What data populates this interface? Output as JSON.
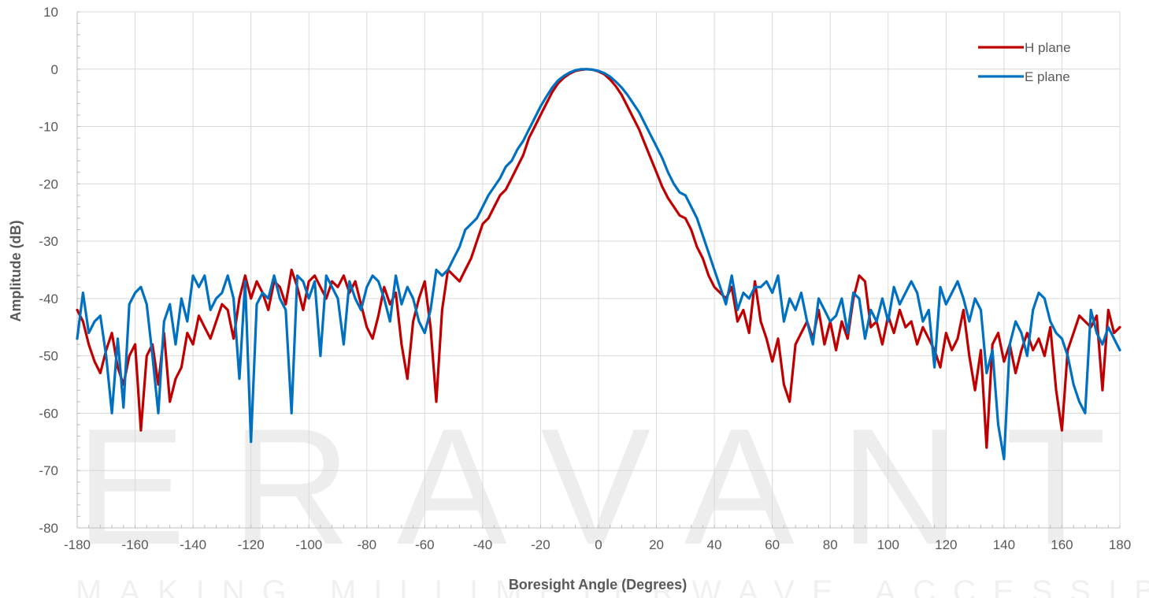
{
  "watermark": {
    "brand": "ERAVANT",
    "tagline": "MAKING MILLIMETERWAVE ACCESSIBLE"
  },
  "chart_data": {
    "type": "line",
    "xlabel": "Boresight Angle (Degrees)",
    "ylabel": "Amplitude (dB)",
    "xlim": [
      -180,
      180
    ],
    "ylim": [
      -80,
      10
    ],
    "xticks": [
      -180,
      -160,
      -140,
      -120,
      -100,
      -80,
      -60,
      -40,
      -20,
      0,
      20,
      40,
      60,
      80,
      100,
      120,
      140,
      160,
      180
    ],
    "yticks": [
      10,
      0,
      -10,
      -20,
      -30,
      -40,
      -50,
      -60,
      -70,
      -80
    ],
    "grid": true,
    "legend_position": "top-right",
    "series": [
      {
        "name": "H plane",
        "color": "#C00000",
        "x": [
          -180,
          -178,
          -176,
          -174,
          -172,
          -170,
          -168,
          -166,
          -164,
          -162,
          -160,
          -158,
          -156,
          -154,
          -152,
          -150,
          -148,
          -146,
          -144,
          -142,
          -140,
          -138,
          -136,
          -134,
          -132,
          -130,
          -128,
          -126,
          -124,
          -122,
          -120,
          -118,
          -116,
          -114,
          -112,
          -110,
          -108,
          -106,
          -104,
          -102,
          -100,
          -98,
          -96,
          -94,
          -92,
          -90,
          -88,
          -86,
          -84,
          -82,
          -80,
          -78,
          -76,
          -74,
          -72,
          -70,
          -68,
          -66,
          -64,
          -62,
          -60,
          -58,
          -56,
          -54,
          -52,
          -50,
          -48,
          -46,
          -44,
          -42,
          -40,
          -38,
          -36,
          -34,
          -32,
          -30,
          -28,
          -26,
          -24,
          -22,
          -20,
          -18,
          -16,
          -14,
          -12,
          -10,
          -8,
          -6,
          -4,
          -2,
          0,
          2,
          4,
          6,
          8,
          10,
          12,
          14,
          16,
          18,
          20,
          22,
          24,
          26,
          28,
          30,
          32,
          34,
          36,
          38,
          40,
          42,
          44,
          46,
          48,
          50,
          52,
          54,
          56,
          58,
          60,
          62,
          64,
          66,
          68,
          70,
          72,
          74,
          76,
          78,
          80,
          82,
          84,
          86,
          88,
          90,
          92,
          94,
          96,
          98,
          100,
          102,
          104,
          106,
          108,
          110,
          112,
          114,
          116,
          118,
          120,
          122,
          124,
          126,
          128,
          130,
          132,
          134,
          136,
          138,
          140,
          142,
          144,
          146,
          148,
          150,
          152,
          154,
          156,
          158,
          160,
          162,
          164,
          166,
          168,
          170,
          172,
          174,
          176,
          178,
          180
        ],
        "y": [
          -42,
          -44,
          -48,
          -51,
          -53,
          -49,
          -46,
          -52,
          -55,
          -50,
          -48,
          -63,
          -50,
          -48,
          -55,
          -46,
          -58,
          -54,
          -52,
          -46,
          -48,
          -43,
          -45,
          -47,
          -44,
          -41,
          -42,
          -47,
          -40,
          -36,
          -40,
          -37,
          -39,
          -42,
          -37,
          -38,
          -41,
          -35,
          -38,
          -42,
          -37,
          -36,
          -38,
          -40,
          -37,
          -38,
          -36,
          -39,
          -37,
          -41,
          -45,
          -47,
          -43,
          -38,
          -41,
          -39,
          -48,
          -54,
          -44,
          -40,
          -37,
          -45,
          -58,
          -42,
          -35,
          -36,
          -37,
          -35,
          -33,
          -30,
          -27,
          -26,
          -24,
          -22,
          -21,
          -19,
          -17,
          -15,
          -12,
          -10,
          -8,
          -6,
          -4,
          -2.5,
          -1.5,
          -0.8,
          -0.3,
          -0.1,
          0,
          -0.1,
          -0.4,
          -0.9,
          -1.8,
          -3,
          -4.5,
          -6.5,
          -8.5,
          -10.5,
          -13,
          -15.5,
          -18,
          -20.5,
          -22.5,
          -24,
          -25.5,
          -26,
          -28,
          -31,
          -33,
          -36,
          -38,
          -39,
          -40,
          -38,
          -44,
          -42,
          -46,
          -37,
          -44,
          -47,
          -51,
          -47,
          -55,
          -58,
          -48,
          -46,
          -44,
          -47,
          -42,
          -48,
          -44,
          -49,
          -44,
          -47,
          -40,
          -36,
          -37,
          -45,
          -44,
          -48,
          -43,
          -46,
          -42,
          -45,
          -44,
          -48,
          -45,
          -47,
          -49,
          -52,
          -46,
          -49,
          -47,
          -42,
          -50,
          -56,
          -49,
          -66,
          -48,
          -46,
          -51,
          -48,
          -53,
          -49,
          -46,
          -49,
          -47,
          -50,
          -45,
          -56,
          -63,
          -49,
          -46,
          -43,
          -44,
          -45,
          -43,
          -56,
          -42,
          -46,
          -45
        ]
      },
      {
        "name": "E plane",
        "color": "#0070C0",
        "x": [
          -180,
          -178,
          -176,
          -174,
          -172,
          -170,
          -168,
          -166,
          -164,
          -162,
          -160,
          -158,
          -156,
          -154,
          -152,
          -150,
          -148,
          -146,
          -144,
          -142,
          -140,
          -138,
          -136,
          -134,
          -132,
          -130,
          -128,
          -126,
          -124,
          -122,
          -120,
          -118,
          -116,
          -114,
          -112,
          -110,
          -108,
          -106,
          -104,
          -102,
          -100,
          -98,
          -96,
          -94,
          -92,
          -90,
          -88,
          -86,
          -84,
          -82,
          -80,
          -78,
          -76,
          -74,
          -72,
          -70,
          -68,
          -66,
          -64,
          -62,
          -60,
          -58,
          -56,
          -54,
          -52,
          -50,
          -48,
          -46,
          -44,
          -42,
          -40,
          -38,
          -36,
          -34,
          -32,
          -30,
          -28,
          -26,
          -24,
          -22,
          -20,
          -18,
          -16,
          -14,
          -12,
          -10,
          -8,
          -6,
          -4,
          -2,
          0,
          2,
          4,
          6,
          8,
          10,
          12,
          14,
          16,
          18,
          20,
          22,
          24,
          26,
          28,
          30,
          32,
          34,
          36,
          38,
          40,
          42,
          44,
          46,
          48,
          50,
          52,
          54,
          56,
          58,
          60,
          62,
          64,
          66,
          68,
          70,
          72,
          74,
          76,
          78,
          80,
          82,
          84,
          86,
          88,
          90,
          92,
          94,
          96,
          98,
          100,
          102,
          104,
          106,
          108,
          110,
          112,
          114,
          116,
          118,
          120,
          122,
          124,
          126,
          128,
          130,
          132,
          134,
          136,
          138,
          140,
          142,
          144,
          146,
          148,
          150,
          152,
          154,
          156,
          158,
          160,
          162,
          164,
          166,
          168,
          170,
          172,
          174,
          176,
          178,
          180
        ],
        "y": [
          -47,
          -39,
          -46,
          -44,
          -43,
          -50,
          -60,
          -47,
          -59,
          -41,
          -39,
          -38,
          -41,
          -50,
          -60,
          -44,
          -41,
          -48,
          -40,
          -44,
          -36,
          -38,
          -36,
          -42,
          -40,
          -39,
          -36,
          -40,
          -54,
          -37,
          -65,
          -41,
          -39,
          -40,
          -36,
          -40,
          -42,
          -60,
          -36,
          -37,
          -40,
          -37,
          -50,
          -36,
          -38,
          -40,
          -48,
          -37,
          -40,
          -42,
          -38,
          -36,
          -37,
          -40,
          -44,
          -36,
          -41,
          -38,
          -40,
          -44,
          -46,
          -42,
          -35,
          -36,
          -35,
          -33,
          -31,
          -28,
          -27,
          -26,
          -24,
          -22,
          -20.5,
          -19,
          -17,
          -16,
          -14,
          -12.5,
          -10.5,
          -8.5,
          -6.5,
          -4.8,
          -3.2,
          -2,
          -1.2,
          -0.6,
          -0.2,
          0,
          0,
          -0.1,
          -0.3,
          -0.7,
          -1.3,
          -2.2,
          -3.2,
          -4.5,
          -6,
          -7.5,
          -9.5,
          -11.5,
          -13.5,
          -15.5,
          -18,
          -20,
          -21.5,
          -22,
          -24,
          -26,
          -29,
          -32,
          -35,
          -38,
          -41,
          -36,
          -42,
          -39,
          -40,
          -38,
          -38,
          -37,
          -39,
          -36,
          -44,
          -40,
          -42,
          -39,
          -44,
          -48,
          -40,
          -42,
          -44,
          -43,
          -40,
          -46,
          -39,
          -40,
          -47,
          -42,
          -44,
          -40,
          -44,
          -38,
          -41,
          -39,
          -37,
          -39,
          -44,
          -42,
          -52,
          -38,
          -41,
          -39,
          -37,
          -40,
          -44,
          -40,
          -42,
          -53,
          -49,
          -62,
          -68,
          -48,
          -44,
          -46,
          -50,
          -42,
          -39,
          -40,
          -44,
          -46,
          -47,
          -50,
          -55,
          -58,
          -60,
          -42,
          -46,
          -48,
          -45,
          -47,
          -49
        ]
      }
    ]
  }
}
